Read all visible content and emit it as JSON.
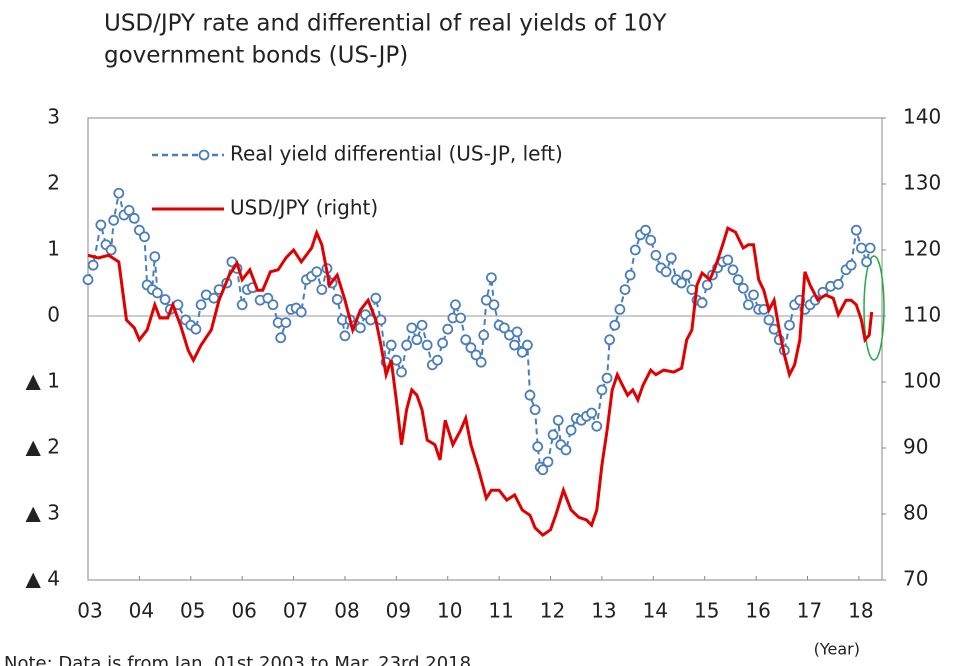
{
  "chart_data": {
    "type": "line",
    "title": [
      "USD/JPY rate and differential of real yields of 10Y",
      "government bonds (US-JP)"
    ],
    "x_label": "(Year)",
    "note": "Note: Data is from Jan. 01st 2003 to Mar. 23rd 2018.",
    "xlim": [
      2003,
      2018.45
    ],
    "xticks": [
      {
        "value": 2003,
        "label": "03"
      },
      {
        "value": 2004,
        "label": "04"
      },
      {
        "value": 2005,
        "label": "05"
      },
      {
        "value": 2006,
        "label": "06"
      },
      {
        "value": 2007,
        "label": "07"
      },
      {
        "value": 2008,
        "label": "08"
      },
      {
        "value": 2009,
        "label": "09"
      },
      {
        "value": 2010,
        "label": "10"
      },
      {
        "value": 2011,
        "label": "11"
      },
      {
        "value": 2012,
        "label": "12"
      },
      {
        "value": 2013,
        "label": "13"
      },
      {
        "value": 2014,
        "label": "14"
      },
      {
        "value": 2015,
        "label": "15"
      },
      {
        "value": 2016,
        "label": "16"
      },
      {
        "value": 2017,
        "label": "17"
      },
      {
        "value": 2018,
        "label": "18"
      }
    ],
    "ylim": [
      -4,
      3
    ],
    "yticks": [
      3,
      2,
      1,
      0,
      {
        "value": -1,
        "label": "▲ 1"
      },
      {
        "value": -2,
        "label": "▲ 2"
      },
      {
        "value": -3,
        "label": "▲ 3"
      },
      {
        "value": -4,
        "label": "▲ 4"
      }
    ],
    "y2lim": [
      70,
      140
    ],
    "y2ticks": [
      140,
      130,
      120,
      110,
      100,
      90,
      80,
      70
    ],
    "legend": "upper left",
    "series": [
      {
        "name": "Real yield differential (US-JP, left)",
        "color": "#4a7ebb",
        "style": "dashed-markers",
        "axis": "y",
        "x": [
          2003.0,
          2003.1,
          2003.25,
          2003.35,
          2003.45,
          2003.5,
          2003.6,
          2003.7,
          2003.8,
          2003.9,
          2004.0,
          2004.1,
          2004.15,
          2004.25,
          2004.3,
          2004.35,
          2004.5,
          2004.6,
          2004.75,
          2004.9,
          2005.0,
          2005.1,
          2005.2,
          2005.3,
          2005.45,
          2005.55,
          2005.7,
          2005.8,
          2005.9,
          2006.0,
          2006.1,
          2006.2,
          2006.35,
          2006.5,
          2006.6,
          2006.7,
          2006.75,
          2006.85,
          2006.95,
          2007.05,
          2007.15,
          2007.25,
          2007.35,
          2007.45,
          2007.55,
          2007.65,
          2007.75,
          2007.85,
          2007.95,
          2008.0,
          2008.1,
          2008.2,
          2008.3,
          2008.4,
          2008.5,
          2008.6,
          2008.7,
          2008.8,
          2008.9,
          2009.0,
          2009.1,
          2009.2,
          2009.3,
          2009.4,
          2009.5,
          2009.6,
          2009.7,
          2009.8,
          2009.9,
          2010.0,
          2010.1,
          2010.15,
          2010.25,
          2010.35,
          2010.45,
          2010.55,
          2010.65,
          2010.7,
          2010.75,
          2010.85,
          2010.9,
          2011.0,
          2011.1,
          2011.2,
          2011.3,
          2011.35,
          2011.45,
          2011.55,
          2011.6,
          2011.7,
          2011.75,
          2011.8,
          2011.85,
          2011.95,
          2012.05,
          2012.15,
          2012.2,
          2012.3,
          2012.4,
          2012.5,
          2012.6,
          2012.7,
          2012.8,
          2012.9,
          2013.0,
          2013.1,
          2013.15,
          2013.25,
          2013.35,
          2013.45,
          2013.55,
          2013.65,
          2013.75,
          2013.85,
          2013.95,
          2014.05,
          2014.15,
          2014.25,
          2014.35,
          2014.45,
          2014.55,
          2014.65,
          2014.75,
          2014.85,
          2014.95,
          2015.05,
          2015.15,
          2015.25,
          2015.35,
          2015.45,
          2015.55,
          2015.65,
          2015.75,
          2015.85,
          2015.95,
          2016.05,
          2016.15,
          2016.25,
          2016.35,
          2016.45,
          2016.55,
          2016.65,
          2016.75,
          2016.85,
          2016.95,
          2017.05,
          2017.15,
          2017.3,
          2017.45,
          2017.6,
          2017.75,
          2017.85,
          2017.95,
          2018.05,
          2018.15,
          2018.22
        ],
        "values": [
          0.55,
          0.77,
          1.38,
          1.08,
          1.0,
          1.45,
          1.86,
          1.53,
          1.6,
          1.48,
          1.3,
          1.2,
          0.47,
          0.4,
          0.9,
          0.35,
          0.25,
          0.1,
          0.17,
          -0.06,
          -0.14,
          -0.2,
          0.17,
          0.32,
          0.27,
          0.4,
          0.5,
          0.82,
          0.72,
          0.17,
          0.4,
          0.43,
          0.24,
          0.27,
          0.17,
          -0.1,
          -0.33,
          -0.1,
          0.1,
          0.12,
          0.06,
          0.55,
          0.6,
          0.67,
          0.4,
          0.72,
          0.5,
          0.25,
          -0.06,
          -0.3,
          -0.06,
          -0.14,
          -0.18,
          0.02,
          -0.06,
          0.27,
          -0.06,
          -0.7,
          -0.44,
          -0.67,
          -0.85,
          -0.44,
          -0.18,
          -0.36,
          -0.14,
          -0.44,
          -0.74,
          -0.67,
          -0.41,
          -0.2,
          -0.03,
          0.17,
          -0.03,
          -0.36,
          -0.48,
          -0.59,
          -0.7,
          -0.29,
          0.24,
          0.58,
          0.17,
          -0.14,
          -0.18,
          -0.29,
          -0.44,
          -0.24,
          -0.55,
          -0.44,
          -1.2,
          -1.42,
          -1.98,
          -2.29,
          -2.33,
          -2.21,
          -1.8,
          -1.58,
          -1.95,
          -2.03,
          -1.73,
          -1.55,
          -1.58,
          -1.52,
          -1.47,
          -1.67,
          -1.12,
          -0.94,
          -0.36,
          -0.14,
          0.1,
          0.4,
          0.62,
          1.0,
          1.23,
          1.3,
          1.15,
          0.92,
          0.73,
          0.67,
          0.88,
          0.55,
          0.5,
          0.62,
          0.4,
          0.24,
          0.2,
          0.47,
          0.62,
          0.73,
          0.82,
          0.85,
          0.7,
          0.55,
          0.42,
          0.17,
          0.32,
          0.1,
          0.1,
          -0.06,
          -0.2,
          -0.36,
          -0.52,
          -0.14,
          0.17,
          0.24,
          0.1,
          0.17,
          0.24,
          0.36,
          0.45,
          0.48,
          0.7,
          0.77,
          1.3,
          1.03,
          0.82,
          1.03
        ]
      },
      {
        "name": "USD/JPY (right)",
        "color": "#e00000",
        "style": "solid",
        "axis": "y2",
        "x": [
          2003.0,
          2003.2,
          2003.4,
          2003.6,
          2003.75,
          2003.9,
          2004.0,
          2004.15,
          2004.3,
          2004.4,
          2004.55,
          2004.65,
          2004.8,
          2004.95,
          2005.05,
          2005.2,
          2005.4,
          2005.55,
          2005.75,
          2005.9,
          2006.0,
          2006.15,
          2006.3,
          2006.4,
          2006.55,
          2006.7,
          2006.85,
          2007.0,
          2007.15,
          2007.35,
          2007.45,
          2007.55,
          2007.7,
          2007.85,
          2008.0,
          2008.15,
          2008.3,
          2008.45,
          2008.6,
          2008.7,
          2008.8,
          2008.9,
          2009.0,
          2009.1,
          2009.2,
          2009.3,
          2009.4,
          2009.5,
          2009.6,
          2009.75,
          2009.85,
          2009.95,
          2010.1,
          2010.25,
          2010.35,
          2010.45,
          2010.6,
          2010.75,
          2010.85,
          2011.0,
          2011.15,
          2011.3,
          2011.45,
          2011.6,
          2011.7,
          2011.85,
          2012.0,
          2012.1,
          2012.25,
          2012.4,
          2012.55,
          2012.7,
          2012.8,
          2012.9,
          2013.0,
          2013.1,
          2013.2,
          2013.3,
          2013.4,
          2013.5,
          2013.6,
          2013.7,
          2013.8,
          2013.95,
          2014.05,
          2014.2,
          2014.4,
          2014.55,
          2014.65,
          2014.75,
          2014.85,
          2014.95,
          2015.1,
          2015.2,
          2015.35,
          2015.45,
          2015.6,
          2015.75,
          2015.85,
          2015.95,
          2016.05,
          2016.15,
          2016.25,
          2016.35,
          2016.45,
          2016.55,
          2016.65,
          2016.75,
          2016.85,
          2016.95,
          2017.05,
          2017.2,
          2017.35,
          2017.5,
          2017.6,
          2017.75,
          2017.85,
          2017.95,
          2018.05,
          2018.12,
          2018.2,
          2018.25
        ],
        "values": [
          119.2,
          118.8,
          119.2,
          118.2,
          109.4,
          108.2,
          106.4,
          107.9,
          111.7,
          109.7,
          109.7,
          111.7,
          108.6,
          104.8,
          103.3,
          105.6,
          107.9,
          112.4,
          116.2,
          118.0,
          115.5,
          117.0,
          113.9,
          113.9,
          116.7,
          117.0,
          118.8,
          120.0,
          118.2,
          120.3,
          122.6,
          120.8,
          114.7,
          116.2,
          112.4,
          107.9,
          110.9,
          112.4,
          109.4,
          105.6,
          101.1,
          103.3,
          97.3,
          90.5,
          95.8,
          98.8,
          98.0,
          95.8,
          91.2,
          90.5,
          88.2,
          94.2,
          90.5,
          92.7,
          94.5,
          90.5,
          86.7,
          82.4,
          83.6,
          83.6,
          82.1,
          82.9,
          80.6,
          79.8,
          77.9,
          76.8,
          77.6,
          79.8,
          83.6,
          80.6,
          79.5,
          79.1,
          78.3,
          80.6,
          87.4,
          92.7,
          98.8,
          101.1,
          99.5,
          98.0,
          98.8,
          97.3,
          99.5,
          101.8,
          101.1,
          101.8,
          101.5,
          102.1,
          106.4,
          107.9,
          114.7,
          116.5,
          115.5,
          117.3,
          120.8,
          123.3,
          122.7,
          120.3,
          120.8,
          120.8,
          115.5,
          113.9,
          110.9,
          112.4,
          107.9,
          104.1,
          101.1,
          102.6,
          106.4,
          116.7,
          114.7,
          112.4,
          113.2,
          112.7,
          110.2,
          112.4,
          112.4,
          111.7,
          109.4,
          106.4,
          107.1,
          110.6
        ]
      }
    ]
  }
}
